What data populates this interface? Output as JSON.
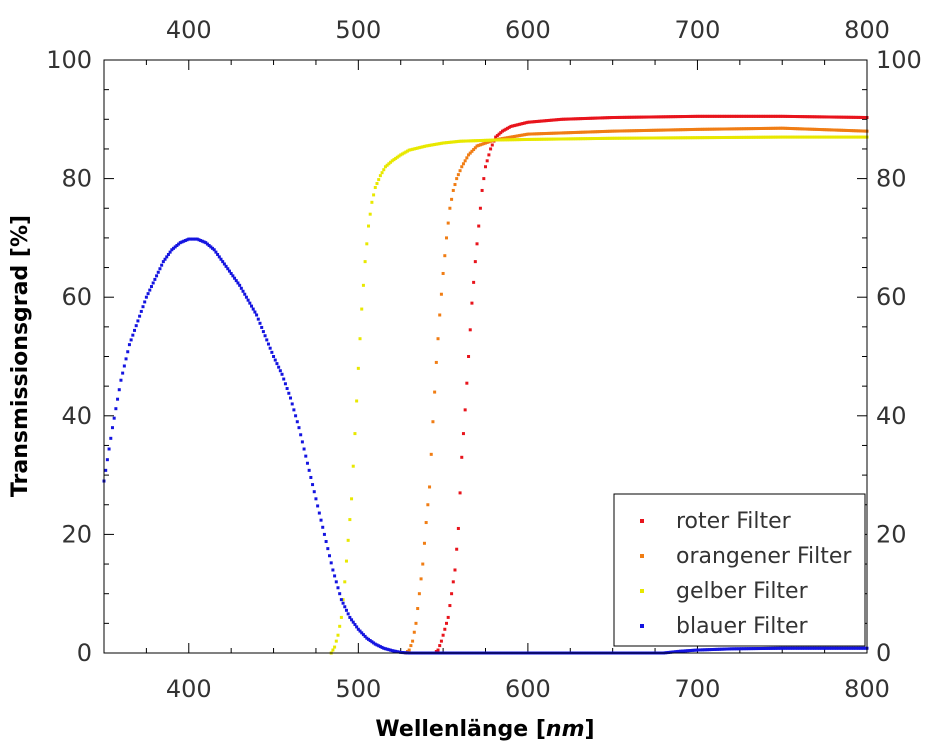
{
  "chart_data": {
    "type": "scatter",
    "title": "",
    "xlabel_main": "Wellenlänge [",
    "xlabel_unit": "nm",
    "xlabel_end": "]",
    "ylabel": "Transmissionsgrad [%]",
    "xlim": [
      350,
      800
    ],
    "ylim": [
      0,
      100
    ],
    "x_ticks": [
      400,
      500,
      600,
      700,
      800
    ],
    "y_ticks": [
      0,
      20,
      40,
      60,
      80,
      100
    ],
    "x_tick_labels": [
      "400",
      "500",
      "600",
      "700",
      "800"
    ],
    "y_tick_labels": [
      "0",
      "20",
      "40",
      "60",
      "80",
      "100"
    ],
    "grid": false,
    "legend_position": "bottom-right",
    "series": [
      {
        "name": "roter Filter",
        "color": "#e8141c",
        "points": [
          [
            545,
            0
          ],
          [
            547,
            0.5
          ],
          [
            549,
            2
          ],
          [
            551,
            4
          ],
          [
            553,
            6
          ],
          [
            555,
            10
          ],
          [
            557,
            14
          ],
          [
            559,
            21
          ],
          [
            561,
            33
          ],
          [
            563,
            41
          ],
          [
            565,
            50
          ],
          [
            567,
            59
          ],
          [
            569,
            66
          ],
          [
            571,
            72
          ],
          [
            573,
            78
          ],
          [
            575,
            82
          ],
          [
            578,
            85
          ],
          [
            581,
            87
          ],
          [
            585,
            88
          ],
          [
            590,
            88.8
          ],
          [
            600,
            89.5
          ],
          [
            620,
            90
          ],
          [
            650,
            90.3
          ],
          [
            700,
            90.5
          ],
          [
            750,
            90.5
          ],
          [
            800,
            90.3
          ]
        ]
      },
      {
        "name": "orangener Filter",
        "color": "#f07d14",
        "points": [
          [
            528,
            0
          ],
          [
            530,
            0.5
          ],
          [
            532,
            2
          ],
          [
            534,
            5
          ],
          [
            536,
            10
          ],
          [
            538,
            15
          ],
          [
            540,
            22
          ],
          [
            542,
            28
          ],
          [
            544,
            39
          ],
          [
            546,
            49
          ],
          [
            548,
            57
          ],
          [
            550,
            64
          ],
          [
            552,
            70
          ],
          [
            554,
            75
          ],
          [
            556,
            78
          ],
          [
            558,
            80
          ],
          [
            561,
            82
          ],
          [
            565,
            84
          ],
          [
            570,
            85.5
          ],
          [
            580,
            86.5
          ],
          [
            600,
            87.5
          ],
          [
            650,
            88
          ],
          [
            700,
            88.3
          ],
          [
            750,
            88.5
          ],
          [
            800,
            88
          ]
        ]
      },
      {
        "name": "gelber Filter",
        "color": "#e8e800",
        "points": [
          [
            484,
            0
          ],
          [
            486,
            1
          ],
          [
            488,
            3
          ],
          [
            490,
            6
          ],
          [
            492,
            12
          ],
          [
            494,
            19
          ],
          [
            496,
            26
          ],
          [
            498,
            37
          ],
          [
            500,
            48
          ],
          [
            502,
            58
          ],
          [
            504,
            66
          ],
          [
            506,
            72
          ],
          [
            508,
            76
          ],
          [
            510,
            78.5
          ],
          [
            513,
            80.5
          ],
          [
            516,
            82
          ],
          [
            520,
            83
          ],
          [
            525,
            84
          ],
          [
            530,
            84.8
          ],
          [
            540,
            85.5
          ],
          [
            550,
            86
          ],
          [
            560,
            86.3
          ],
          [
            580,
            86.5
          ],
          [
            600,
            86.6
          ],
          [
            650,
            86.8
          ],
          [
            700,
            86.9
          ],
          [
            750,
            87
          ],
          [
            800,
            87
          ]
        ]
      },
      {
        "name": "blauer Filter",
        "color": "#1414e0",
        "points": [
          [
            350,
            29
          ],
          [
            355,
            38
          ],
          [
            360,
            46
          ],
          [
            365,
            52
          ],
          [
            370,
            56
          ],
          [
            375,
            60
          ],
          [
            380,
            63
          ],
          [
            385,
            66
          ],
          [
            390,
            68
          ],
          [
            395,
            69.2
          ],
          [
            400,
            69.8
          ],
          [
            405,
            69.8
          ],
          [
            410,
            69.2
          ],
          [
            415,
            68
          ],
          [
            420,
            66
          ],
          [
            425,
            64
          ],
          [
            430,
            62
          ],
          [
            435,
            59.5
          ],
          [
            440,
            57
          ],
          [
            445,
            53.5
          ],
          [
            450,
            50
          ],
          [
            455,
            47
          ],
          [
            460,
            43
          ],
          [
            465,
            38
          ],
          [
            470,
            32
          ],
          [
            475,
            26
          ],
          [
            480,
            20
          ],
          [
            485,
            14
          ],
          [
            490,
            9
          ],
          [
            495,
            6
          ],
          [
            500,
            4
          ],
          [
            505,
            2.5
          ],
          [
            510,
            1.5
          ],
          [
            515,
            0.8
          ],
          [
            520,
            0.4
          ],
          [
            525,
            0.1
          ],
          [
            530,
            0
          ],
          [
            680,
            0
          ],
          [
            690,
            0.3
          ],
          [
            700,
            0.5
          ],
          [
            720,
            0.7
          ],
          [
            750,
            0.8
          ],
          [
            800,
            0.8
          ]
        ]
      }
    ]
  }
}
